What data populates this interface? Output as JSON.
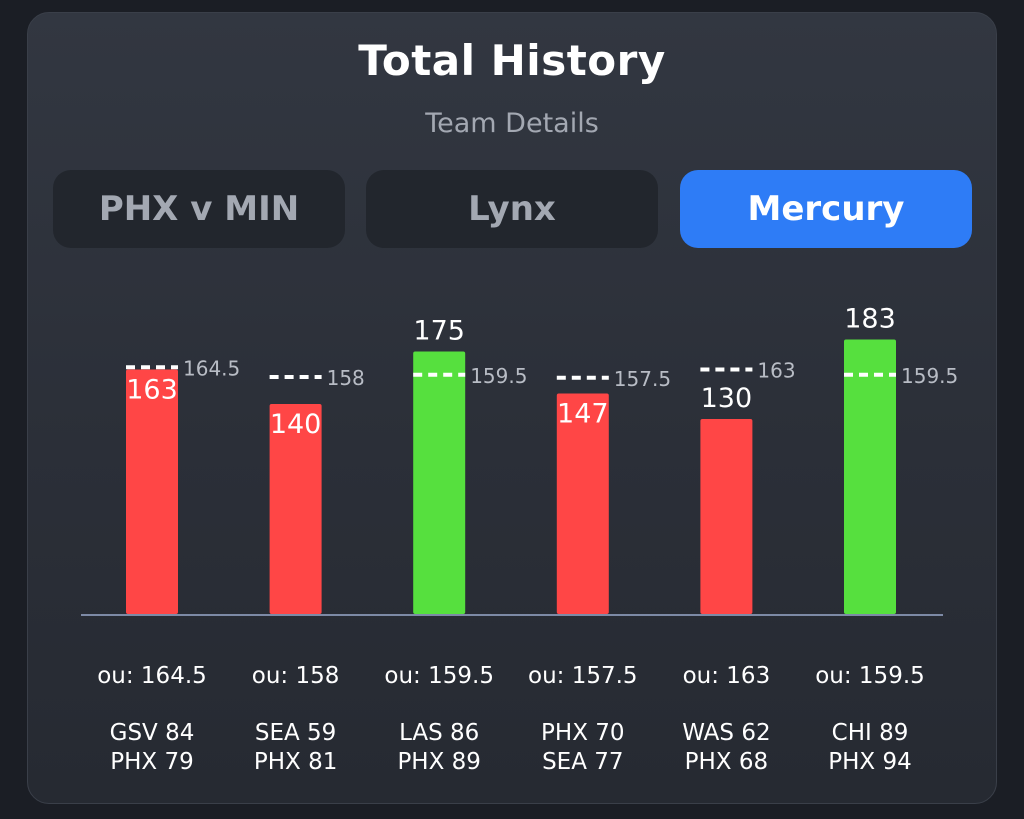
{
  "header": {
    "title": "Total History",
    "subtitle": "Team Details"
  },
  "tabs": [
    {
      "label": "PHX v MIN",
      "active": false
    },
    {
      "label": "Lynx",
      "active": false
    },
    {
      "label": "Mercury",
      "active": true
    }
  ],
  "colors": {
    "over": "#56e03e",
    "under": "#ff4646",
    "line": "#ffffff",
    "active_tab": "#2e7cf6"
  },
  "chart_data": {
    "type": "bar",
    "ylim": [
      0,
      200
    ],
    "games": [
      {
        "total": 163,
        "line": 164.5,
        "line_label": "164.5",
        "ou_label": "ou: 164.5",
        "away": "GSV 84",
        "home": "PHX 79",
        "result": "under"
      },
      {
        "total": 140,
        "line": 158,
        "line_label": "158",
        "ou_label": "ou: 158",
        "away": "SEA 59",
        "home": "PHX 81",
        "result": "under"
      },
      {
        "total": 175,
        "line": 159.5,
        "line_label": "159.5",
        "ou_label": "ou: 159.5",
        "away": "LAS 86",
        "home": "PHX 89",
        "result": "over"
      },
      {
        "total": 147,
        "line": 157.5,
        "line_label": "157.5",
        "ou_label": "ou: 157.5",
        "away": "PHX 70",
        "home": "SEA 77",
        "result": "under"
      },
      {
        "total": 130,
        "line": 163,
        "line_label": "163",
        "ou_label": "ou: 163",
        "away": "WAS 62",
        "home": "PHX 68",
        "result": "under"
      },
      {
        "total": 183,
        "line": 159.5,
        "line_label": "159.5",
        "ou_label": "ou: 159.5",
        "away": "CHI 89",
        "home": "PHX 94",
        "result": "over"
      }
    ]
  }
}
